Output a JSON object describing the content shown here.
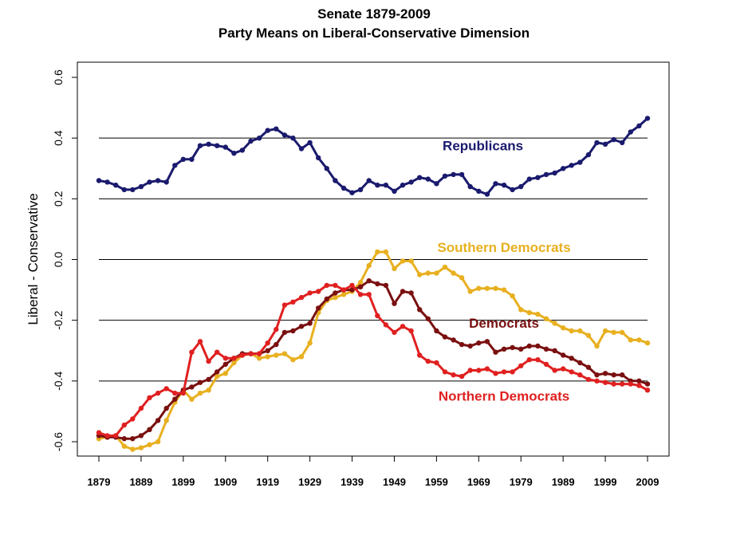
{
  "chart_data": {
    "type": "line",
    "title": "Senate 1879-2009",
    "subtitle": "Party Means on Liberal-Conservative Dimension",
    "xlabel": "",
    "ylabel": "Liberal - Conservative",
    "xlim": [
      1879,
      2009
    ],
    "ylim": [
      -0.6,
      0.6
    ],
    "grid": "horizontal lines at -0.4, -0.2, 0.0, 0.2, 0.4",
    "x_ticks": [
      "1879",
      "1889",
      "1899",
      "1909",
      "1919",
      "1929",
      "1939",
      "1949",
      "1959",
      "1969",
      "1979",
      "1989",
      "1999",
      "2009"
    ],
    "y_ticks": [
      "-0.6",
      "-0.4",
      "-0.2",
      "0.0",
      "0.2",
      "0.4",
      "0.6"
    ],
    "x": [
      1879,
      1881,
      1883,
      1885,
      1887,
      1889,
      1891,
      1893,
      1895,
      1897,
      1899,
      1901,
      1903,
      1905,
      1907,
      1909,
      1911,
      1913,
      1915,
      1917,
      1919,
      1921,
      1923,
      1925,
      1927,
      1929,
      1931,
      1933,
      1935,
      1937,
      1939,
      1941,
      1943,
      1945,
      1947,
      1949,
      1951,
      1953,
      1955,
      1957,
      1959,
      1961,
      1963,
      1965,
      1967,
      1969,
      1971,
      1973,
      1975,
      1977,
      1979,
      1981,
      1983,
      1985,
      1987,
      1989,
      1991,
      1993,
      1995,
      1997,
      1999,
      2001,
      2003,
      2005,
      2007,
      2009
    ],
    "series": [
      {
        "name": "Republicans",
        "color": "#1a1a6e",
        "values": [
          0.26,
          0.255,
          0.245,
          0.23,
          0.23,
          0.24,
          0.255,
          0.26,
          0.255,
          0.31,
          0.33,
          0.33,
          0.375,
          0.38,
          0.375,
          0.37,
          0.35,
          0.36,
          0.39,
          0.4,
          0.425,
          0.43,
          0.41,
          0.4,
          0.365,
          0.385,
          0.335,
          0.3,
          0.26,
          0.235,
          0.22,
          0.23,
          0.26,
          0.245,
          0.245,
          0.225,
          0.245,
          0.255,
          0.27,
          0.265,
          0.25,
          0.275,
          0.28,
          0.28,
          0.24,
          0.225,
          0.215,
          0.25,
          0.245,
          0.23,
          0.24,
          0.265,
          0.27,
          0.28,
          0.285,
          0.3,
          0.31,
          0.32,
          0.345,
          0.385,
          0.38,
          0.395,
          0.385,
          0.42,
          0.44,
          0.465
        ]
      },
      {
        "name": "Southern Democrats",
        "color": "#e8b020",
        "values": [
          -0.59,
          -0.585,
          -0.58,
          -0.615,
          -0.625,
          -0.62,
          -0.61,
          -0.6,
          -0.53,
          -0.47,
          -0.43,
          -0.46,
          -0.44,
          -0.43,
          -0.385,
          -0.375,
          -0.34,
          -0.315,
          -0.31,
          -0.325,
          -0.32,
          -0.315,
          -0.31,
          -0.33,
          -0.32,
          -0.275,
          -0.175,
          -0.135,
          -0.125,
          -0.115,
          -0.105,
          -0.075,
          -0.02,
          0.025,
          0.025,
          -0.03,
          -0.005,
          -0.005,
          -0.05,
          -0.045,
          -0.045,
          -0.025,
          -0.045,
          -0.06,
          -0.105,
          -0.095,
          -0.095,
          -0.095,
          -0.1,
          -0.12,
          -0.165,
          -0.175,
          -0.18,
          -0.195,
          -0.21,
          -0.225,
          -0.235,
          -0.235,
          -0.25,
          -0.285,
          -0.235,
          -0.24,
          -0.24,
          -0.265,
          -0.265,
          -0.275
        ]
      },
      {
        "name": "Democrats",
        "color": "#7a1010",
        "values": [
          -0.58,
          -0.585,
          -0.585,
          -0.59,
          -0.59,
          -0.58,
          -0.56,
          -0.53,
          -0.49,
          -0.46,
          -0.43,
          -0.42,
          -0.405,
          -0.395,
          -0.37,
          -0.345,
          -0.325,
          -0.31,
          -0.31,
          -0.31,
          -0.3,
          -0.28,
          -0.24,
          -0.235,
          -0.22,
          -0.21,
          -0.16,
          -0.13,
          -0.11,
          -0.1,
          -0.1,
          -0.09,
          -0.07,
          -0.08,
          -0.085,
          -0.145,
          -0.105,
          -0.11,
          -0.165,
          -0.195,
          -0.235,
          -0.255,
          -0.265,
          -0.28,
          -0.285,
          -0.275,
          -0.27,
          -0.305,
          -0.295,
          -0.29,
          -0.295,
          -0.285,
          -0.285,
          -0.295,
          -0.3,
          -0.315,
          -0.325,
          -0.34,
          -0.355,
          -0.38,
          -0.375,
          -0.38,
          -0.38,
          -0.4,
          -0.4,
          -0.41
        ]
      },
      {
        "name": "Northern Democrats",
        "color": "#e02020",
        "values": [
          -0.57,
          -0.58,
          -0.58,
          -0.545,
          -0.525,
          -0.49,
          -0.455,
          -0.44,
          -0.425,
          -0.44,
          -0.44,
          -0.305,
          -0.27,
          -0.335,
          -0.305,
          -0.325,
          -0.325,
          -0.315,
          -0.31,
          -0.31,
          -0.275,
          -0.23,
          -0.15,
          -0.14,
          -0.125,
          -0.11,
          -0.105,
          -0.085,
          -0.085,
          -0.1,
          -0.085,
          -0.115,
          -0.115,
          -0.185,
          -0.215,
          -0.24,
          -0.22,
          -0.235,
          -0.315,
          -0.335,
          -0.34,
          -0.37,
          -0.38,
          -0.385,
          -0.365,
          -0.365,
          -0.36,
          -0.375,
          -0.37,
          -0.37,
          -0.35,
          -0.33,
          -0.33,
          -0.345,
          -0.365,
          -0.36,
          -0.37,
          -0.38,
          -0.395,
          -0.4,
          -0.405,
          -0.41,
          -0.41,
          -0.41,
          -0.415,
          -0.43
        ]
      }
    ],
    "annotations": [
      {
        "text": "Republicans",
        "x": 1970,
        "y": 0.36,
        "color": "#1a1a6e"
      },
      {
        "text": "Southern Democrats",
        "x": 1975,
        "y": 0.025,
        "color": "#e8b020"
      },
      {
        "text": "Democrats",
        "x": 1975,
        "y": -0.225,
        "color": "#7a1010"
      },
      {
        "text": "Northern Democrats",
        "x": 1975,
        "y": -0.465,
        "color": "#e02020"
      }
    ]
  }
}
